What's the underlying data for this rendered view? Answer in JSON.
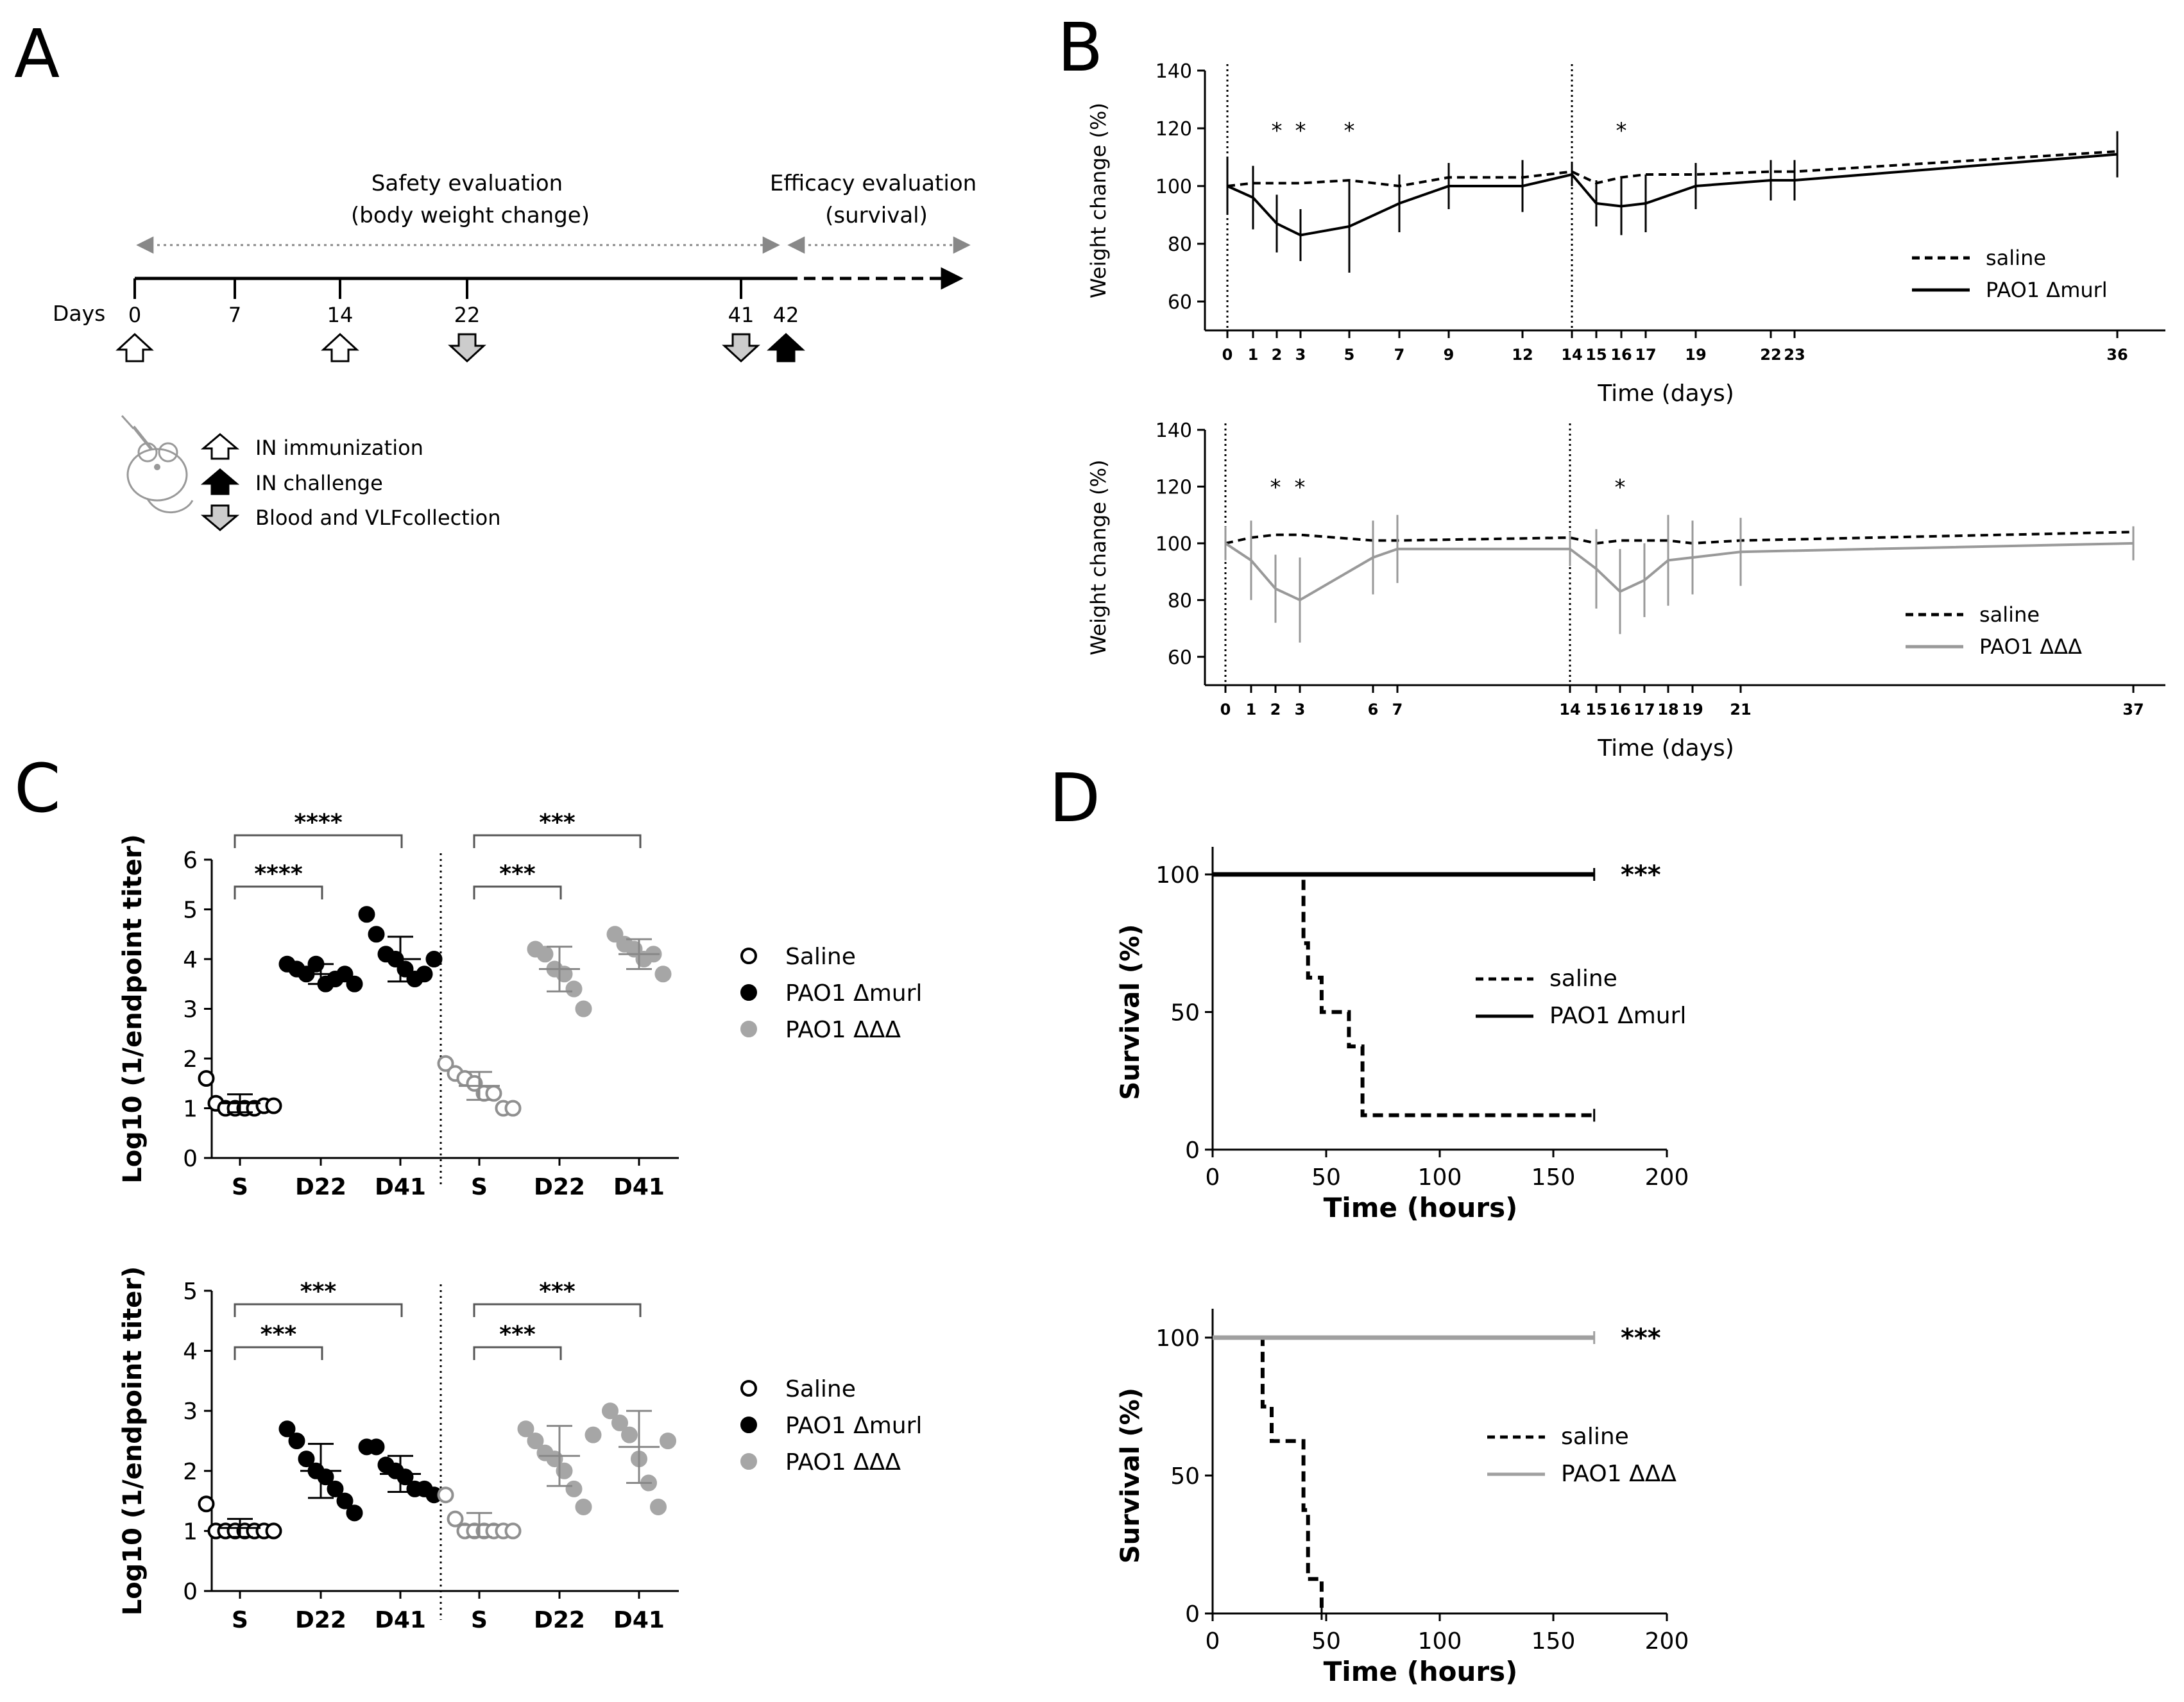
{
  "figure": {
    "panel_labels": [
      "A",
      "B",
      "C",
      "D"
    ]
  },
  "timeline": {
    "safety_label_1": "Safety evaluation",
    "safety_label_2": "(body weight change)",
    "efficacy_label_1": "Efficacy evaluation",
    "efficacy_label_2": "(survival)",
    "days_label": "Days",
    "day_ticks": [
      "0",
      "7",
      "14",
      "22",
      "41",
      "42"
    ],
    "legend": [
      {
        "label": "IN immunization",
        "arrow": "open-up"
      },
      {
        "label": "IN challenge",
        "arrow": "filled-up"
      },
      {
        "label": "Blood and VLFcollection",
        "arrow": "grey-down"
      }
    ],
    "icon": "mouse-with-syringe-icon"
  },
  "chart_data": [
    {
      "id": "B-top",
      "type": "line",
      "xlabel": "Time (days)",
      "ylabel": "Weight change (%)",
      "ylim": [
        50,
        140
      ],
      "yticks": [
        60,
        80,
        100,
        120,
        140
      ],
      "x_ticks": [
        0,
        1,
        2,
        3,
        5,
        7,
        9,
        12,
        14,
        15,
        16,
        17,
        19,
        22,
        23,
        36
      ],
      "vlines": [
        0,
        14
      ],
      "significance": [
        {
          "x": 2,
          "label": "*"
        },
        {
          "x": 3,
          "label": "*"
        },
        {
          "x": 5,
          "label": "*"
        },
        {
          "x": 16,
          "label": "*"
        }
      ],
      "legend_position": "right",
      "series": [
        {
          "name": "saline",
          "style": "dashed",
          "color": "#000000",
          "x": [
            0,
            1,
            2,
            3,
            5,
            7,
            9,
            12,
            14,
            15,
            16,
            17,
            19,
            22,
            23,
            36
          ],
          "y": [
            100,
            101,
            101,
            101,
            102,
            100,
            103,
            103,
            105,
            101,
            103,
            104,
            104,
            105,
            105,
            112
          ]
        },
        {
          "name": "PAO1 Δmurl",
          "style": "solid",
          "color": "#000000",
          "x": [
            0,
            1,
            2,
            3,
            5,
            7,
            9,
            12,
            14,
            15,
            16,
            17,
            19,
            22,
            23,
            36
          ],
          "y": [
            100,
            96,
            87,
            83,
            86,
            94,
            100,
            100,
            104,
            94,
            93,
            94,
            100,
            102,
            102,
            111
          ],
          "err": [
            10,
            11,
            10,
            9,
            16,
            10,
            8,
            9,
            4,
            8,
            10,
            10,
            8,
            7,
            7,
            8
          ]
        }
      ]
    },
    {
      "id": "B-bottom",
      "type": "line",
      "xlabel": "Time (days)",
      "ylabel": "Weight change (%)",
      "ylim": [
        50,
        140
      ],
      "yticks": [
        60,
        80,
        100,
        120,
        140
      ],
      "x_ticks": [
        0,
        1,
        2,
        3,
        6,
        7,
        14,
        15,
        16,
        17,
        18,
        19,
        21,
        37
      ],
      "vlines": [
        0,
        14
      ],
      "significance": [
        {
          "x": 2,
          "label": "*"
        },
        {
          "x": 3,
          "label": "*"
        },
        {
          "x": 16,
          "label": "*"
        }
      ],
      "legend_position": "right",
      "series": [
        {
          "name": "saline",
          "style": "dashed",
          "color": "#000000",
          "x": [
            0,
            1,
            2,
            3,
            6,
            7,
            14,
            15,
            16,
            17,
            18,
            19,
            21,
            37
          ],
          "y": [
            100,
            102,
            103,
            103,
            101,
            101,
            102,
            100,
            101,
            101,
            101,
            100,
            101,
            104
          ]
        },
        {
          "name": "PAO1 ΔΔΔ",
          "style": "solid",
          "color": "#999999",
          "x": [
            0,
            1,
            2,
            3,
            6,
            7,
            14,
            15,
            16,
            17,
            18,
            19,
            21,
            37
          ],
          "y": [
            100,
            94,
            84,
            80,
            95,
            98,
            98,
            91,
            83,
            87,
            94,
            95,
            97,
            100
          ],
          "err": [
            6,
            14,
            12,
            15,
            13,
            12,
            6,
            14,
            15,
            13,
            16,
            13,
            12,
            6
          ]
        }
      ]
    },
    {
      "id": "C-top",
      "type": "scatter",
      "ylabel": "Log10 (1/endpoint titer)",
      "ylim": [
        0,
        6
      ],
      "yticks": [
        0,
        1,
        2,
        3,
        4,
        5,
        6
      ],
      "groups": [
        {
          "label": "S",
          "series": "Saline",
          "points": [
            1.6,
            1.1,
            1.0,
            1.0,
            1.0,
            1.0,
            1.05,
            1.05
          ],
          "mean": 1.1,
          "sd": 0.18
        },
        {
          "label": "D22",
          "series": "PAO1 Δmurl",
          "points": [
            3.9,
            3.8,
            3.7,
            3.9,
            3.5,
            3.6,
            3.7,
            3.5
          ],
          "mean": 3.7,
          "sd": 0.2
        },
        {
          "label": "D41",
          "series": "PAO1 Δmurl",
          "points": [
            4.9,
            4.5,
            4.1,
            4.0,
            3.8,
            3.6,
            3.7,
            4.0
          ],
          "mean": 4.0,
          "sd": 0.45
        },
        {
          "label": "S",
          "series": "Saline",
          "points": [
            1.9,
            1.7,
            1.6,
            1.5,
            1.3,
            1.3,
            1.0,
            1.0
          ],
          "mean": 1.45,
          "sd": 0.28
        },
        {
          "label": "D22",
          "series": "PAO1 ΔΔΔ",
          "points": [
            4.2,
            4.1,
            3.8,
            3.7,
            3.4,
            3.0
          ],
          "mean": 3.8,
          "sd": 0.45
        },
        {
          "label": "D41",
          "series": "PAO1 ΔΔΔ",
          "points": [
            4.5,
            4.3,
            4.2,
            4.0,
            4.1,
            3.7
          ],
          "mean": 4.1,
          "sd": 0.3
        }
      ],
      "brackets": [
        {
          "from": 0,
          "to": 1,
          "label": "****"
        },
        {
          "from": 0,
          "to": 2,
          "label": "****"
        },
        {
          "from": 3,
          "to": 4,
          "label": "***"
        },
        {
          "from": 3,
          "to": 5,
          "label": "***"
        }
      ],
      "legend": [
        {
          "name": "Saline",
          "marker": "open-circle"
        },
        {
          "name": "PAO1 Δmurl",
          "marker": "black-circle"
        },
        {
          "name": "PAO1 ΔΔΔ",
          "marker": "grey-circle"
        }
      ],
      "legend_position": "right"
    },
    {
      "id": "C-bottom",
      "type": "scatter",
      "ylabel": "Log10 (1/endpoint titer)",
      "ylim": [
        0,
        5
      ],
      "yticks": [
        0,
        1,
        2,
        3,
        4,
        5
      ],
      "groups": [
        {
          "label": "S",
          "series": "Saline",
          "points": [
            1.45,
            1.0,
            1.0,
            1.0,
            1.0,
            1.0,
            1.0,
            1.0
          ],
          "mean": 1.05,
          "sd": 0.15
        },
        {
          "label": "D22",
          "series": "PAO1 Δmurl",
          "points": [
            2.7,
            2.5,
            2.2,
            2.0,
            1.9,
            1.7,
            1.5,
            1.3
          ],
          "mean": 2.0,
          "sd": 0.45
        },
        {
          "label": "D41",
          "series": "PAO1 Δmurl",
          "points": [
            2.4,
            2.4,
            2.1,
            2.0,
            1.9,
            1.7,
            1.7,
            1.6
          ],
          "mean": 1.95,
          "sd": 0.3
        },
        {
          "label": "S",
          "series": "Saline",
          "points": [
            1.6,
            1.2,
            1.0,
            1.0,
            1.0,
            1.0,
            1.0,
            1.0
          ],
          "mean": 1.1,
          "sd": 0.2
        },
        {
          "label": "D22",
          "series": "PAO1 ΔΔΔ",
          "points": [
            2.7,
            2.5,
            2.3,
            2.2,
            2.0,
            1.7,
            1.4,
            2.6
          ],
          "mean": 2.25,
          "sd": 0.5
        },
        {
          "label": "D41",
          "series": "PAO1 ΔΔΔ",
          "points": [
            3.0,
            2.8,
            2.6,
            2.2,
            1.8,
            1.4,
            2.5
          ],
          "mean": 2.4,
          "sd": 0.6
        }
      ],
      "brackets": [
        {
          "from": 0,
          "to": 1,
          "label": "***"
        },
        {
          "from": 0,
          "to": 2,
          "label": "***"
        },
        {
          "from": 3,
          "to": 4,
          "label": "***"
        },
        {
          "from": 3,
          "to": 5,
          "label": "***"
        }
      ],
      "legend": [
        {
          "name": "Saline",
          "marker": "open-circle"
        },
        {
          "name": "PAO1 Δmurl",
          "marker": "black-circle"
        },
        {
          "name": "PAO1 ΔΔΔ",
          "marker": "grey-circle"
        }
      ],
      "legend_position": "right"
    },
    {
      "id": "D-top",
      "type": "line",
      "xlabel": "Time (hours)",
      "ylabel": "Survival (%)",
      "xlim": [
        0,
        200
      ],
      "xticks": [
        0,
        50,
        100,
        150,
        200
      ],
      "ylim": [
        0,
        100
      ],
      "yticks": [
        0,
        50,
        100
      ],
      "significance": "***",
      "legend_position": "right",
      "series": [
        {
          "name": "saline",
          "style": "dashed",
          "color": "#000000",
          "x": [
            0,
            40,
            40,
            42,
            42,
            48,
            48,
            60,
            60,
            66,
            66,
            168
          ],
          "y": [
            100,
            100,
            75,
            75,
            62.5,
            62.5,
            50,
            50,
            37.5,
            37.5,
            12.5,
            12.5
          ]
        },
        {
          "name": "PAO1 Δmurl",
          "style": "solid",
          "color": "#000000",
          "x": [
            0,
            168
          ],
          "y": [
            100,
            100
          ]
        }
      ]
    },
    {
      "id": "D-bottom",
      "type": "line",
      "xlabel": "Time (hours)",
      "ylabel": "Survival (%)",
      "xlim": [
        0,
        200
      ],
      "xticks": [
        0,
        50,
        100,
        150,
        200
      ],
      "ylim": [
        0,
        100
      ],
      "yticks": [
        0,
        50,
        100
      ],
      "significance": "***",
      "legend_position": "right",
      "series": [
        {
          "name": "saline",
          "style": "dashed",
          "color": "#000000",
          "x": [
            0,
            22,
            22,
            26,
            26,
            40,
            40,
            42,
            42,
            48,
            48
          ],
          "y": [
            100,
            100,
            75,
            75,
            62.5,
            62.5,
            37.5,
            37.5,
            12.5,
            12.5,
            0
          ]
        },
        {
          "name": "PAO1 ΔΔΔ",
          "style": "solid",
          "color": "#a0a0a0",
          "x": [
            0,
            168
          ],
          "y": [
            100,
            100
          ]
        }
      ]
    }
  ]
}
